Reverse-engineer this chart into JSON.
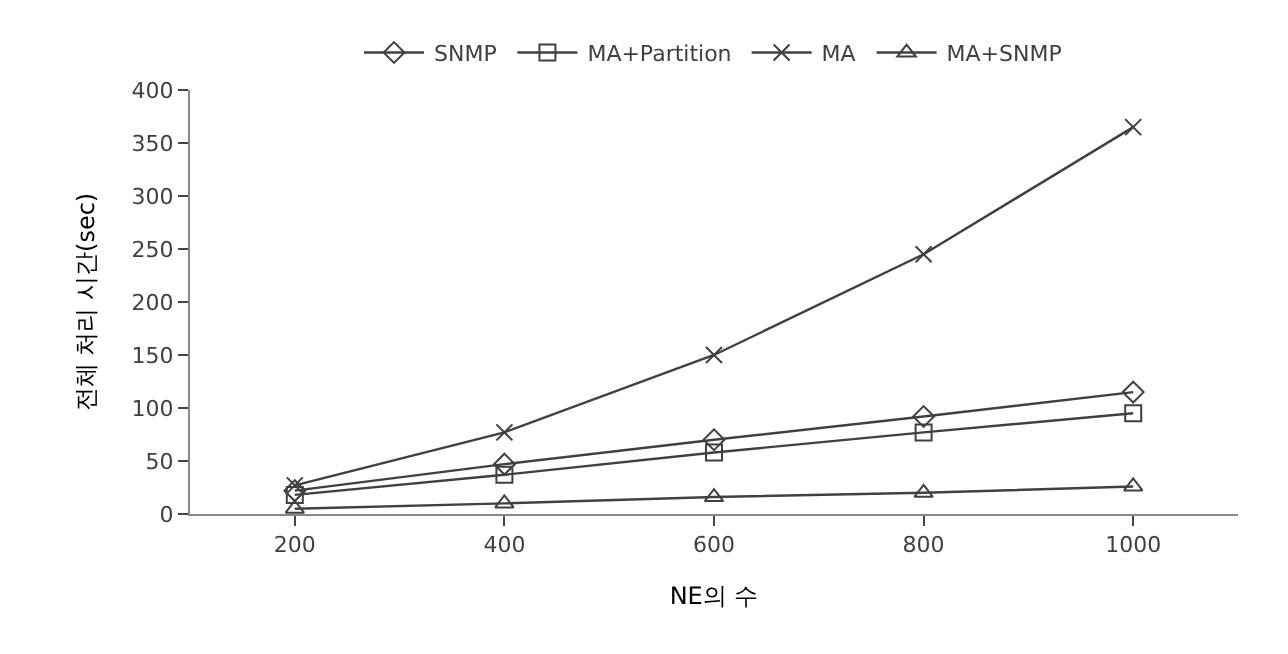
{
  "chart_data": {
    "type": "line",
    "xlabel": "NE의 수",
    "ylabel": "전체 처리 시간(sec)",
    "categories": [
      "200",
      "400",
      "600",
      "800",
      "1000"
    ],
    "series": [
      {
        "name": "SNMP",
        "color": "#404040",
        "marker": "diamond",
        "values": [
          22,
          47,
          70,
          92,
          115
        ]
      },
      {
        "name": "MA+Partition",
        "color": "#404040",
        "marker": "square",
        "values": [
          18,
          37,
          58,
          77,
          95
        ]
      },
      {
        "name": "MA",
        "color": "#404040",
        "marker": "cross",
        "values": [
          27,
          77,
          150,
          245,
          365
        ]
      },
      {
        "name": "MA+SNMP",
        "color": "#404040",
        "marker": "triangle",
        "values": [
          5,
          10,
          16,
          20,
          26
        ]
      }
    ],
    "ylim": [
      0,
      400
    ],
    "yticks": [
      0,
      50,
      100,
      150,
      200,
      250,
      300,
      350,
      400
    ],
    "legend": "top",
    "line_style": "solid"
  }
}
